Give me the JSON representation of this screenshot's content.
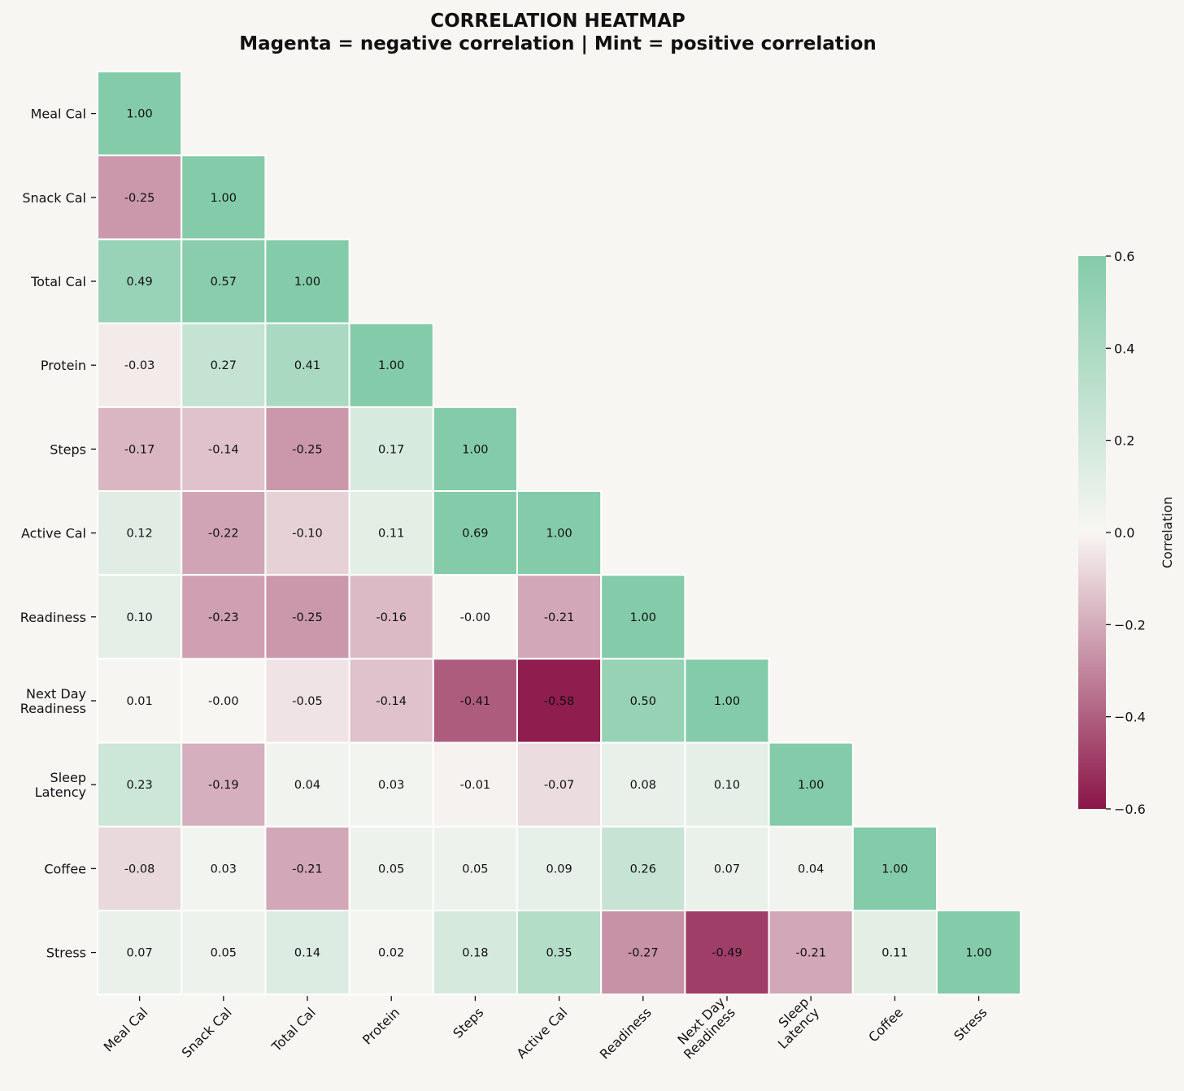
{
  "chart_data": {
    "type": "heatmap",
    "title": "CORRELATION HEATMAP",
    "subtitle": "Magenta = negative correlation | Mint = positive correlation",
    "variables": [
      {
        "y_label": [
          "Meal Cal"
        ],
        "x_label": [
          "Meal Cal"
        ]
      },
      {
        "y_label": [
          "Snack Cal"
        ],
        "x_label": [
          "Snack Cal"
        ]
      },
      {
        "y_label": [
          "Total Cal"
        ],
        "x_label": [
          "Total Cal"
        ]
      },
      {
        "y_label": [
          "Protein"
        ],
        "x_label": [
          "Protein"
        ]
      },
      {
        "y_label": [
          "Steps"
        ],
        "x_label": [
          "Steps"
        ]
      },
      {
        "y_label": [
          "Active Cal"
        ],
        "x_label": [
          "Active Cal"
        ]
      },
      {
        "y_label": [
          "Readiness"
        ],
        "x_label": [
          "Readiness"
        ]
      },
      {
        "y_label": [
          "Next Day",
          "Readiness"
        ],
        "x_label": [
          "Next Day",
          "Readiness"
        ]
      },
      {
        "y_label": [
          "Sleep",
          "Latency"
        ],
        "x_label": [
          "Sleep",
          "Latency"
        ]
      },
      {
        "y_label": [
          "Coffee"
        ],
        "x_label": [
          "Coffee"
        ]
      },
      {
        "y_label": [
          "Stress"
        ],
        "x_label": [
          "Stress"
        ]
      }
    ],
    "matrix_lower": [
      [
        "1.00"
      ],
      [
        "-0.25",
        "1.00"
      ],
      [
        "0.49",
        "0.57",
        "1.00"
      ],
      [
        "-0.03",
        "0.27",
        "0.41",
        "1.00"
      ],
      [
        "-0.17",
        "-0.14",
        "-0.25",
        "0.17",
        "1.00"
      ],
      [
        "0.12",
        "-0.22",
        "-0.10",
        "0.11",
        "0.69",
        "1.00"
      ],
      [
        "0.10",
        "-0.23",
        "-0.25",
        "-0.16",
        "-0.00",
        "-0.21",
        "1.00"
      ],
      [
        "0.01",
        "-0.00",
        "-0.05",
        "-0.14",
        "-0.41",
        "-0.58",
        "0.50",
        "1.00"
      ],
      [
        "0.23",
        "-0.19",
        "0.04",
        "0.03",
        "-0.01",
        "-0.07",
        "0.08",
        "0.10",
        "1.00"
      ],
      [
        "-0.08",
        "0.03",
        "-0.21",
        "0.05",
        "0.05",
        "0.09",
        "0.26",
        "0.07",
        "0.04",
        "1.00"
      ],
      [
        "0.07",
        "0.05",
        "0.14",
        "0.02",
        "0.18",
        "0.35",
        "-0.27",
        "-0.49",
        "-0.21",
        "0.11",
        "1.00"
      ]
    ],
    "colorbar": {
      "label": "Correlation",
      "vmin": -0.6,
      "vmax": 0.6,
      "ticks": [
        {
          "value": 0.6,
          "label": "0.6"
        },
        {
          "value": 0.4,
          "label": "0.4"
        },
        {
          "value": 0.2,
          "label": "0.2"
        },
        {
          "value": 0.0,
          "label": "0.0"
        },
        {
          "value": -0.2,
          "label": "−0.2"
        },
        {
          "value": -0.4,
          "label": "−0.4"
        },
        {
          "value": -0.6,
          "label": "−0.6"
        }
      ],
      "color_negative": "#8b1547",
      "color_neutral": "#f8f6f3",
      "color_positive": "#84cba9"
    },
    "grid_line_color": "#ffffff",
    "background": "#f8f6f3"
  }
}
